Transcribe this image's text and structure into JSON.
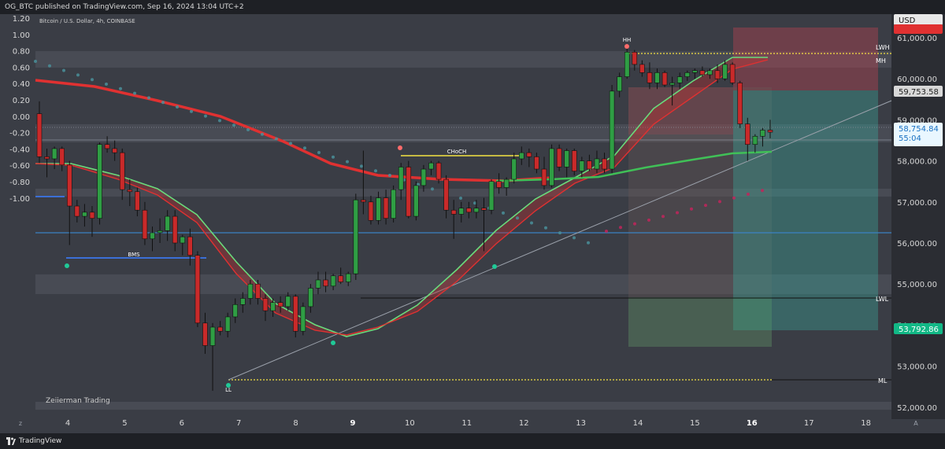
{
  "header": {
    "publisher_text": "OG_BTC published on TradingView.com, Sep 16, 2024 13:04 UTC+2"
  },
  "symbol_line": "Bitcoin / U.S. Dollar, 4h, COINBASE",
  "footer": {
    "brand": "TradingView",
    "watermark": "Zeiierman Trading"
  },
  "currency_button": "USD",
  "colors": {
    "up": "#2f9e44",
    "down": "#c92a2a",
    "ema_red": "#e03131",
    "ema_green": "#40c057",
    "yellow": "#f5e342",
    "blue_line": "#3b6fd6"
  },
  "chart_data": {
    "type": "candlestick",
    "timeframe": "4h",
    "x_ticks": [
      "4",
      "5",
      "6",
      "7",
      "8",
      "9",
      "10",
      "11",
      "12",
      "13",
      "14",
      "15",
      "16",
      "17",
      "18"
    ],
    "left_axis": {
      "ticks": [
        "1.20",
        "1.00",
        "0.80",
        "0.60",
        "0.40",
        "0.20",
        "0.00",
        "-0.20",
        "-0.40",
        "-0.60",
        "-0.80",
        "-1.00"
      ],
      "range": [
        -1.0,
        1.2
      ]
    },
    "right_axis": {
      "ticks": [
        "61,000.00",
        "60,000.00",
        "59,000.00",
        "58,000.00",
        "57,000.00",
        "56,000.00",
        "55,000.00",
        "54,000.00",
        "53,000.00",
        "52,000.00"
      ],
      "range": [
        52000,
        61000
      ]
    },
    "price_labels": {
      "target": "59,753.58",
      "current": "58,754.84",
      "countdown": "55:04",
      "stop": "53,792.86"
    },
    "level_labels": {
      "lwh": "LWH",
      "mh": "MH",
      "lwl": "LWL",
      "ml": "ML"
    },
    "annotations": {
      "hh": "HH",
      "ll": "LL",
      "choch": "CHoCH",
      "bms": "BMS"
    },
    "candles": [
      {
        "o": 59150,
        "h": 59450,
        "l": 57950,
        "c": 58100
      },
      {
        "o": 58100,
        "h": 58300,
        "l": 57600,
        "c": 58050
      },
      {
        "o": 58050,
        "h": 58350,
        "l": 57800,
        "c": 58300
      },
      {
        "o": 58300,
        "h": 58350,
        "l": 57750,
        "c": 57900
      },
      {
        "o": 57900,
        "h": 58000,
        "l": 55950,
        "c": 56900
      },
      {
        "o": 56900,
        "h": 57050,
        "l": 56500,
        "c": 56650
      },
      {
        "o": 56650,
        "h": 56950,
        "l": 56400,
        "c": 56750
      },
      {
        "o": 56750,
        "h": 56900,
        "l": 56150,
        "c": 56600
      },
      {
        "o": 56600,
        "h": 58450,
        "l": 56450,
        "c": 58400
      },
      {
        "o": 58400,
        "h": 58600,
        "l": 58200,
        "c": 58300
      },
      {
        "o": 58300,
        "h": 58500,
        "l": 58000,
        "c": 58200
      },
      {
        "o": 58200,
        "h": 58300,
        "l": 57050,
        "c": 57300
      },
      {
        "o": 57300,
        "h": 57550,
        "l": 56900,
        "c": 57250
      },
      {
        "o": 57250,
        "h": 57350,
        "l": 56650,
        "c": 56800
      },
      {
        "o": 56800,
        "h": 57000,
        "l": 55950,
        "c": 56100
      },
      {
        "o": 56100,
        "h": 56400,
        "l": 55800,
        "c": 56250
      },
      {
        "o": 56250,
        "h": 56600,
        "l": 56000,
        "c": 56300
      },
      {
        "o": 56300,
        "h": 56800,
        "l": 56050,
        "c": 56650
      },
      {
        "o": 56650,
        "h": 56800,
        "l": 55800,
        "c": 56000
      },
      {
        "o": 56000,
        "h": 56200,
        "l": 55700,
        "c": 56150
      },
      {
        "o": 56150,
        "h": 56350,
        "l": 55450,
        "c": 55700
      },
      {
        "o": 55700,
        "h": 55800,
        "l": 53950,
        "c": 54050
      },
      {
        "o": 54050,
        "h": 54300,
        "l": 53300,
        "c": 53500
      },
      {
        "o": 53500,
        "h": 54050,
        "l": 52400,
        "c": 53950
      },
      {
        "o": 53950,
        "h": 54100,
        "l": 53750,
        "c": 53850
      },
      {
        "o": 53850,
        "h": 54300,
        "l": 53700,
        "c": 54200
      },
      {
        "o": 54200,
        "h": 54650,
        "l": 54050,
        "c": 54500
      },
      {
        "o": 54500,
        "h": 54800,
        "l": 54300,
        "c": 54650
      },
      {
        "o": 54650,
        "h": 55100,
        "l": 54500,
        "c": 55000
      },
      {
        "o": 55000,
        "h": 55100,
        "l": 54500,
        "c": 54650
      },
      {
        "o": 54650,
        "h": 54750,
        "l": 54100,
        "c": 54350
      },
      {
        "o": 54350,
        "h": 54650,
        "l": 54200,
        "c": 54550
      },
      {
        "o": 54550,
        "h": 54700,
        "l": 54300,
        "c": 54450
      },
      {
        "o": 54450,
        "h": 54800,
        "l": 54350,
        "c": 54700
      },
      {
        "o": 54700,
        "h": 54750,
        "l": 53700,
        "c": 53850
      },
      {
        "o": 53850,
        "h": 54550,
        "l": 53750,
        "c": 54450
      },
      {
        "o": 54450,
        "h": 55000,
        "l": 54300,
        "c": 54900
      },
      {
        "o": 54900,
        "h": 55300,
        "l": 54750,
        "c": 55100
      },
      {
        "o": 55100,
        "h": 55300,
        "l": 54800,
        "c": 54950
      },
      {
        "o": 54950,
        "h": 55250,
        "l": 54850,
        "c": 55200
      },
      {
        "o": 55200,
        "h": 55400,
        "l": 55000,
        "c": 55050
      },
      {
        "o": 55050,
        "h": 55300,
        "l": 54950,
        "c": 55250
      },
      {
        "o": 55250,
        "h": 57200,
        "l": 55100,
        "c": 57050
      },
      {
        "o": 57050,
        "h": 58250,
        "l": 56700,
        "c": 57000
      },
      {
        "o": 57000,
        "h": 57150,
        "l": 56450,
        "c": 56550
      },
      {
        "o": 56550,
        "h": 57250,
        "l": 56450,
        "c": 57100
      },
      {
        "o": 57100,
        "h": 57300,
        "l": 56450,
        "c": 56600
      },
      {
        "o": 56600,
        "h": 57400,
        "l": 56500,
        "c": 57300
      },
      {
        "o": 57300,
        "h": 57950,
        "l": 57050,
        "c": 57850
      },
      {
        "o": 57850,
        "h": 58000,
        "l": 56600,
        "c": 56650
      },
      {
        "o": 56650,
        "h": 57500,
        "l": 56550,
        "c": 57400
      },
      {
        "o": 57400,
        "h": 57900,
        "l": 57250,
        "c": 57800
      },
      {
        "o": 57800,
        "h": 58000,
        "l": 57650,
        "c": 57950
      },
      {
        "o": 57950,
        "h": 58000,
        "l": 57450,
        "c": 57550
      },
      {
        "o": 57550,
        "h": 57650,
        "l": 56600,
        "c": 56800
      },
      {
        "o": 56800,
        "h": 57050,
        "l": 56100,
        "c": 56700
      },
      {
        "o": 56700,
        "h": 57000,
        "l": 56500,
        "c": 56850
      },
      {
        "o": 56850,
        "h": 57000,
        "l": 56600,
        "c": 56750
      },
      {
        "o": 56750,
        "h": 57050,
        "l": 56600,
        "c": 56850
      },
      {
        "o": 56850,
        "h": 57100,
        "l": 55800,
        "c": 56800
      },
      {
        "o": 56800,
        "h": 57550,
        "l": 56700,
        "c": 57500
      },
      {
        "o": 57500,
        "h": 57700,
        "l": 57200,
        "c": 57350
      },
      {
        "o": 57350,
        "h": 57600,
        "l": 57150,
        "c": 57550
      },
      {
        "o": 57550,
        "h": 58200,
        "l": 57450,
        "c": 58050
      },
      {
        "o": 58050,
        "h": 58350,
        "l": 57900,
        "c": 58200
      },
      {
        "o": 58200,
        "h": 58300,
        "l": 57850,
        "c": 58100
      },
      {
        "o": 58100,
        "h": 58200,
        "l": 57700,
        "c": 57800
      },
      {
        "o": 57800,
        "h": 58100,
        "l": 57300,
        "c": 57400
      },
      {
        "o": 57400,
        "h": 58400,
        "l": 57350,
        "c": 58300
      },
      {
        "o": 58300,
        "h": 58400,
        "l": 57750,
        "c": 57850
      },
      {
        "o": 57850,
        "h": 58300,
        "l": 57600,
        "c": 58250
      },
      {
        "o": 58250,
        "h": 58300,
        "l": 57650,
        "c": 57750
      },
      {
        "o": 57750,
        "h": 58100,
        "l": 57600,
        "c": 58000
      },
      {
        "o": 58000,
        "h": 58150,
        "l": 57750,
        "c": 57800
      },
      {
        "o": 57800,
        "h": 58250,
        "l": 57700,
        "c": 58050
      },
      {
        "o": 58050,
        "h": 58200,
        "l": 57700,
        "c": 57800
      },
      {
        "o": 57800,
        "h": 59850,
        "l": 57700,
        "c": 59700
      },
      {
        "o": 59700,
        "h": 60150,
        "l": 59550,
        "c": 60050
      },
      {
        "o": 60050,
        "h": 60750,
        "l": 60000,
        "c": 60650
      },
      {
        "o": 60650,
        "h": 60700,
        "l": 60200,
        "c": 60350
      },
      {
        "o": 60350,
        "h": 60450,
        "l": 60050,
        "c": 60150
      },
      {
        "o": 60150,
        "h": 60400,
        "l": 59750,
        "c": 59900
      },
      {
        "o": 59900,
        "h": 60250,
        "l": 59750,
        "c": 60150
      },
      {
        "o": 60150,
        "h": 60200,
        "l": 59800,
        "c": 59850
      },
      {
        "o": 59850,
        "h": 60050,
        "l": 59350,
        "c": 59900
      },
      {
        "o": 59900,
        "h": 60150,
        "l": 59750,
        "c": 60050
      },
      {
        "o": 60050,
        "h": 60200,
        "l": 59950,
        "c": 60150
      },
      {
        "o": 60150,
        "h": 60250,
        "l": 60000,
        "c": 60200
      },
      {
        "o": 60200,
        "h": 60300,
        "l": 60050,
        "c": 60100
      },
      {
        "o": 60100,
        "h": 60250,
        "l": 60000,
        "c": 60200
      },
      {
        "o": 60200,
        "h": 60350,
        "l": 59900,
        "c": 60000
      },
      {
        "o": 60000,
        "h": 60450,
        "l": 59950,
        "c": 60350
      },
      {
        "o": 60350,
        "h": 60400,
        "l": 59850,
        "c": 59900
      },
      {
        "o": 59900,
        "h": 59950,
        "l": 58800,
        "c": 58900
      },
      {
        "o": 58900,
        "h": 59050,
        "l": 58000,
        "c": 58400
      },
      {
        "o": 58400,
        "h": 58650,
        "l": 58200,
        "c": 58600
      },
      {
        "o": 58600,
        "h": 58800,
        "l": 58350,
        "c": 58750
      },
      {
        "o": 58750,
        "h": 59000,
        "l": 58550,
        "c": 58700
      }
    ]
  }
}
